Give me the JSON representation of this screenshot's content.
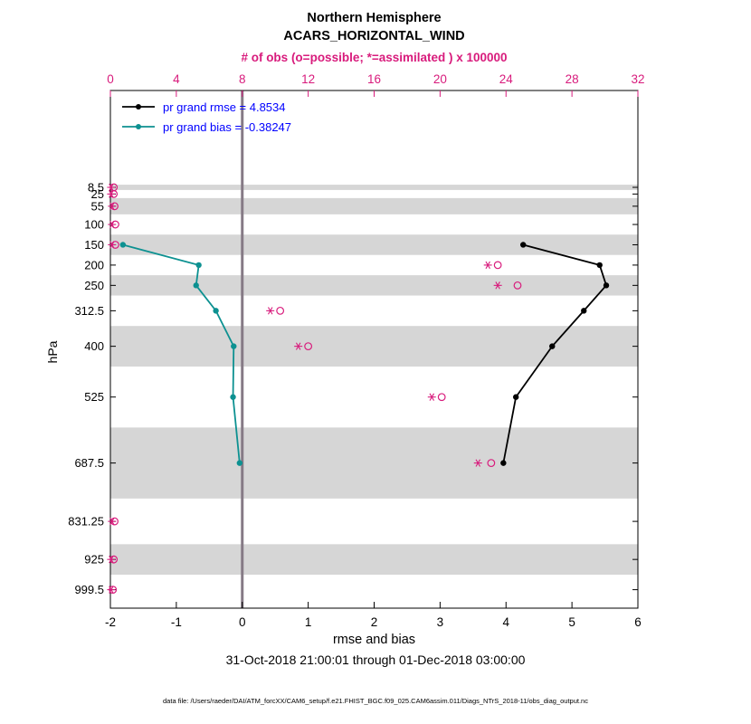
{
  "header": {
    "title_line1": "Northern Hemisphere",
    "title_line2": "ACARS_HORIZONTAL_WIND",
    "obs_axis_label": "# of obs (o=possible; *=assimilated ) x 100000"
  },
  "legend": {
    "text_color": "#0000ff",
    "entries": [
      {
        "label": "pr grand rmse = 4.8534",
        "line_color": "#000000"
      },
      {
        "label": "pr grand bias = -0.38247",
        "line_color": "#0d9191"
      }
    ]
  },
  "footer": {
    "xlabel": "rmse and bias",
    "timespan": "31-Oct-2018 21:00:01 through 01-Dec-2018 03:00:00",
    "datafile": "data file: /Users/raeder/DAI/ATM_forcXX/CAM6_setup/f.e21.FHIST_BGC.f09_025.CAM6assim.011/Diags_NTrS_2018-11/obs_diag_output.nc"
  },
  "chart_data": {
    "type": "line",
    "title": "Northern Hemisphere",
    "subtitle": "ACARS_HORIZONTAL_WIND",
    "x_bottom": {
      "label": "rmse and bias",
      "min": -2,
      "max": 6,
      "ticks": [
        -2,
        -1,
        0,
        1,
        2,
        3,
        4,
        5,
        6
      ],
      "color": "#000000"
    },
    "x_top": {
      "label": "# of obs (o=possible; *=assimilated ) x 100000",
      "min": 0,
      "max": 32,
      "ticks": [
        0,
        4,
        8,
        12,
        16,
        20,
        24,
        28,
        32
      ],
      "color": "#d81b7c"
    },
    "y_axis": {
      "label": "hPa",
      "direction": "pressure-increasing-downward",
      "top": -230,
      "bottom": 1045,
      "levels": [
        8.5,
        25,
        55,
        100,
        150,
        200,
        250,
        312.5,
        400,
        525,
        687.5,
        831.25,
        925,
        999.5
      ]
    },
    "shaded_bands_hpa": [
      [
        2,
        15
      ],
      [
        35,
        75
      ],
      [
        125,
        175
      ],
      [
        225,
        275
      ],
      [
        350,
        450
      ],
      [
        600,
        775
      ],
      [
        887.5,
        962.5
      ]
    ],
    "zero_line_x": 0,
    "series": [
      {
        "name": "rmse",
        "color": "#000000",
        "grand_value": 4.8534,
        "levels_hpa": [
          150,
          200,
          250,
          312.5,
          400,
          525,
          687.5
        ],
        "values": [
          4.26,
          5.42,
          5.52,
          5.18,
          4.7,
          4.15,
          3.96
        ]
      },
      {
        "name": "bias",
        "color": "#0d9191",
        "grand_value": -0.38247,
        "levels_hpa": [
          150,
          200,
          250,
          312.5,
          400,
          525,
          687.5
        ],
        "values": [
          -1.81,
          -0.66,
          -0.7,
          -0.4,
          -0.13,
          -0.14,
          -0.04
        ]
      }
    ],
    "obs_counts_x100000": {
      "marker_color": "#d81b7c",
      "levels_hpa": [
        8.5,
        25,
        55,
        100,
        150,
        200,
        250,
        312.5,
        400,
        525,
        687.5,
        831.25,
        925,
        999.5
      ],
      "possible": [
        0.2,
        0.2,
        0.25,
        0.3,
        0.3,
        23.5,
        24.7,
        10.3,
        12.0,
        20.1,
        23.1,
        0.25,
        0.2,
        0.15
      ],
      "assimilated": [
        0.05,
        0.05,
        0.1,
        0.1,
        0.1,
        22.9,
        23.5,
        9.7,
        11.4,
        19.5,
        22.3,
        0.1,
        0.05,
        0.05
      ]
    },
    "colors": {
      "band": "#d6d6d6",
      "zero_line": "#857a85",
      "frame": "#000000"
    }
  }
}
